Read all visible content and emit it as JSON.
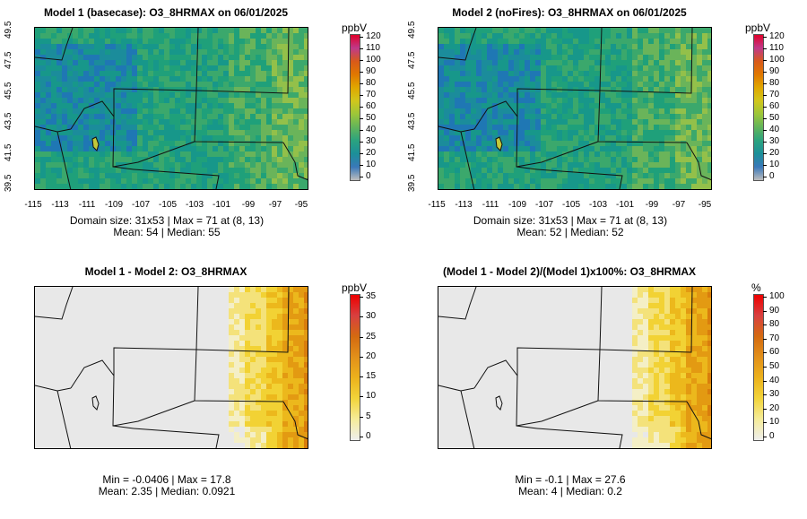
{
  "colorbar_abs": [
    "#bdbdbd",
    "#3a78b9",
    "#1c8f99",
    "#2ba37f",
    "#61b45b",
    "#9cc63a",
    "#d1c61c",
    "#e0a800",
    "#e07800",
    "#d85a1a",
    "#c03a8a",
    "#e0002a"
  ],
  "colorbar_diff": [
    "#eeeeee",
    "#f5ec9a",
    "#f2d43a",
    "#ecb21c",
    "#e2901a",
    "#d46a10",
    "#d84040",
    "#ee0000"
  ],
  "panels": [
    {
      "title": "Model 1 (basecase): O3_8HRMAX on 06/01/2025",
      "stats_line1": "Domain size: 31x53 | Max = 71 at (8, 13)",
      "stats_line2": "Mean: 54 |  Median: 55",
      "unit": "ppbV",
      "cb_labels": [
        "120",
        "110",
        "100",
        "90",
        "80",
        "70",
        "60",
        "50",
        "40",
        "30",
        "20",
        "10",
        "0"
      ],
      "map": "abs"
    },
    {
      "title": "Model 2 (noFires): O3_8HRMAX on 06/01/2025",
      "stats_line1": "Domain size: 31x53 | Max = 71 at (8, 13)",
      "stats_line2": "Mean: 52 |  Median: 52",
      "unit": "ppbV",
      "cb_labels": [
        "120",
        "110",
        "100",
        "90",
        "80",
        "70",
        "60",
        "50",
        "40",
        "30",
        "20",
        "10",
        "0"
      ],
      "map": "abs"
    },
    {
      "title": "Model 1 - Model 2: O3_8HRMAX",
      "stats_line1": "Min = -0.0406 | Max = 17.8",
      "stats_line2": "Mean: 2.35 |  Median: 0.0921",
      "unit": "ppbV",
      "cb_labels": [
        "35",
        "30",
        "25",
        "20",
        "15",
        "10",
        "5",
        "0"
      ],
      "map": "diff"
    },
    {
      "title": "(Model 1 - Model 2)/(Model 1)x100%: O3_8HRMAX",
      "stats_line1": "Min = -0.1 | Max = 27.6",
      "stats_line2": "Mean: 4 |  Median: 0.2",
      "unit": "%",
      "cb_labels": [
        "100",
        "90",
        "80",
        "70",
        "60",
        "50",
        "40",
        "30",
        "20",
        "10",
        "0"
      ],
      "map": "diff"
    }
  ],
  "x_ticks": [
    "-115",
    "-113",
    "-111",
    "-109",
    "-107",
    "-105",
    "-103",
    "-101",
    "-99",
    "-97",
    "-95"
  ],
  "y_ticks": [
    "39.5",
    "41.5",
    "43.5",
    "45.5",
    "47.5",
    "49.5"
  ],
  "chart_data": [
    {
      "type": "heatmap",
      "title": "Model 1 (basecase): O3_8HRMAX on 06/01/2025",
      "x_ticks": [
        -115,
        -113,
        -111,
        -109,
        -107,
        -105,
        -103,
        -101,
        -99,
        -97,
        -95
      ],
      "y_ticks": [
        39.5,
        41.5,
        43.5,
        45.5,
        47.5,
        49.5
      ],
      "xlim": [
        -115,
        -95
      ],
      "ylim": [
        39.5,
        49.5
      ],
      "colorbar": {
        "unit": "ppbV",
        "range": [
          0,
          120
        ],
        "ticks": [
          0,
          10,
          20,
          30,
          40,
          50,
          60,
          70,
          80,
          90,
          100,
          110,
          120
        ]
      },
      "domain_size": "31x53",
      "max": 71,
      "max_at": [
        8,
        13
      ],
      "mean": 54,
      "median": 55
    },
    {
      "type": "heatmap",
      "title": "Model 2 (noFires): O3_8HRMAX on 06/01/2025",
      "x_ticks": [
        -115,
        -113,
        -111,
        -109,
        -107,
        -105,
        -103,
        -101,
        -99,
        -97,
        -95
      ],
      "y_ticks": [
        39.5,
        41.5,
        43.5,
        45.5,
        47.5,
        49.5
      ],
      "xlim": [
        -115,
        -95
      ],
      "ylim": [
        39.5,
        49.5
      ],
      "colorbar": {
        "unit": "ppbV",
        "range": [
          0,
          120
        ],
        "ticks": [
          0,
          10,
          20,
          30,
          40,
          50,
          60,
          70,
          80,
          90,
          100,
          110,
          120
        ]
      },
      "domain_size": "31x53",
      "max": 71,
      "max_at": [
        8,
        13
      ],
      "mean": 52,
      "median": 52
    },
    {
      "type": "heatmap",
      "title": "Model 1 - Model 2: O3_8HRMAX",
      "colorbar": {
        "unit": "ppbV",
        "range": [
          0,
          35
        ],
        "ticks": [
          0,
          5,
          10,
          15,
          20,
          25,
          30,
          35
        ]
      },
      "min": -0.0406,
      "max": 17.8,
      "mean": 2.35,
      "median": 0.0921
    },
    {
      "type": "heatmap",
      "title": "(Model 1 - Model 2)/(Model 1)x100%: O3_8HRMAX",
      "colorbar": {
        "unit": "%",
        "range": [
          0,
          100
        ],
        "ticks": [
          0,
          10,
          20,
          30,
          40,
          50,
          60,
          70,
          80,
          90,
          100
        ]
      },
      "min": -0.1,
      "max": 27.6,
      "mean": 4,
      "median": 0.2
    }
  ]
}
